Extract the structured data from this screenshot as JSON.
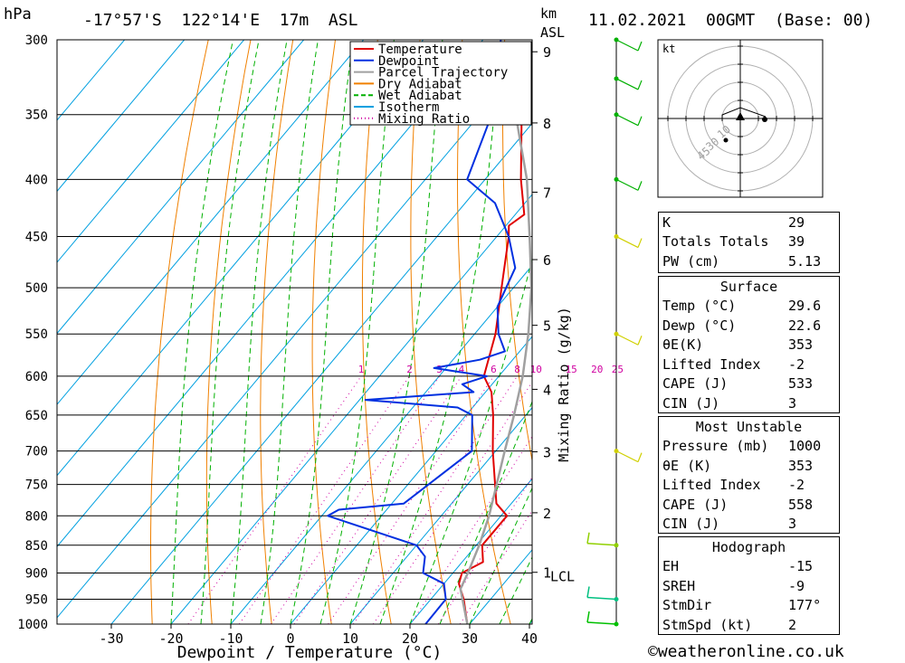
{
  "header": {
    "hpa_label": "hPa",
    "location": "-17°57'S  122°14'E  17m  ASL",
    "km_label": "km",
    "asl_label": "ASL",
    "datetime": "11.02.2021  00GMT  (Base: 00)"
  },
  "chart_data": {
    "type": "line",
    "subtype": "skew-T log-p diagram",
    "xlabel": "Dewpoint / Temperature (°C)",
    "ylabel_right": "Mixing Ratio (g/kg)",
    "x_ticks": [
      -30,
      -20,
      -10,
      0,
      10,
      20,
      30,
      40
    ],
    "pressure_levels": [
      300,
      350,
      400,
      450,
      500,
      550,
      600,
      650,
      700,
      750,
      800,
      850,
      900,
      950,
      1000
    ],
    "km_ticks": [
      1,
      2,
      3,
      4,
      5,
      6,
      7,
      8,
      9
    ],
    "lcl_label": "LCL",
    "mixing_ratio_labels": [
      "1",
      "2",
      "3",
      "4",
      "6",
      "8",
      "10",
      "15",
      "20",
      "25"
    ],
    "legend": [
      {
        "name": "Temperature",
        "color": "#e00000",
        "style": "solid"
      },
      {
        "name": "Dewpoint",
        "color": "#0030e0",
        "style": "solid"
      },
      {
        "name": "Parcel Trajectory",
        "color": "#a0a0a0",
        "style": "solid"
      },
      {
        "name": "Dry Adiabat",
        "color": "#f08000",
        "style": "solid"
      },
      {
        "name": "Wet Adiabat",
        "color": "#00b000",
        "style": "dashed"
      },
      {
        "name": "Isotherm",
        "color": "#00a0e0",
        "style": "solid"
      },
      {
        "name": "Mixing Ratio",
        "color": "#d000a0",
        "style": "dotted"
      }
    ],
    "series": [
      {
        "name": "Temperature",
        "points": [
          [
            1000,
            29.6
          ],
          [
            950,
            25.5
          ],
          [
            920,
            22.5
          ],
          [
            900,
            21.5
          ],
          [
            880,
            23.5
          ],
          [
            850,
            21.0
          ],
          [
            800,
            21.0
          ],
          [
            780,
            17.5
          ],
          [
            700,
            9.5
          ],
          [
            650,
            4.5
          ],
          [
            620,
            1.0
          ],
          [
            600,
            -2.5
          ],
          [
            550,
            -6.5
          ],
          [
            500,
            -12.0
          ],
          [
            450,
            -18.0
          ],
          [
            440,
            -19.5
          ],
          [
            430,
            -18.5
          ],
          [
            400,
            -24.0
          ],
          [
            350,
            -33.0
          ]
        ]
      },
      {
        "name": "Dewpoint",
        "points": [
          [
            1000,
            22.6
          ],
          [
            950,
            22.5
          ],
          [
            920,
            20.0
          ],
          [
            900,
            15.0
          ],
          [
            870,
            13.0
          ],
          [
            850,
            10.0
          ],
          [
            800,
            -9.0
          ],
          [
            790,
            -8.0
          ],
          [
            780,
            2.0
          ],
          [
            700,
            6.0
          ],
          [
            650,
            1.0
          ],
          [
            640,
            -2.5
          ],
          [
            630,
            -19.0
          ],
          [
            620,
            -2.0
          ],
          [
            610,
            -5.0
          ],
          [
            600,
            -2.0
          ],
          [
            590,
            -12.0
          ],
          [
            580,
            -5.5
          ],
          [
            570,
            -2.5
          ],
          [
            550,
            -6.0
          ],
          [
            520,
            -10.0
          ],
          [
            480,
            -12.5
          ],
          [
            450,
            -18.0
          ],
          [
            420,
            -25.0
          ],
          [
            400,
            -33.0
          ],
          [
            350,
            -38.0
          ],
          [
            300,
            -47.0
          ]
        ]
      },
      {
        "name": "Parcel Trajectory",
        "points": [
          [
            1000,
            29.6
          ],
          [
            930,
            23.5
          ],
          [
            900,
            22.5
          ],
          [
            850,
            20.5
          ],
          [
            800,
            18.0
          ],
          [
            700,
            11.5
          ],
          [
            650,
            8.0
          ],
          [
            600,
            4.0
          ],
          [
            550,
            -1.0
          ],
          [
            500,
            -7.0
          ],
          [
            450,
            -14.5
          ],
          [
            400,
            -23.0
          ],
          [
            350,
            -34.0
          ]
        ]
      }
    ]
  },
  "wind_profile": {
    "note": "wind barbs along right edge",
    "colors": {
      "upper": "#00b000",
      "mid": "#d0d000",
      "low": "#00c080"
    }
  },
  "hodograph": {
    "unit_label": "kt",
    "ring_labels": [
      "10",
      "30",
      "45"
    ]
  },
  "indices_top": [
    {
      "label": "K",
      "value": "29"
    },
    {
      "label": "Totals Totals",
      "value": "39"
    },
    {
      "label": "PW (cm)",
      "value": "5.13"
    }
  ],
  "surface": {
    "title": "Surface",
    "rows": [
      {
        "label": "Temp (°C)",
        "value": "29.6"
      },
      {
        "label": "Dewp (°C)",
        "value": "22.6"
      },
      {
        "label": "θE(K)",
        "value": "353"
      },
      {
        "label": "Lifted Index",
        "value": "-2"
      },
      {
        "label": "CAPE (J)",
        "value": "533"
      },
      {
        "label": "CIN (J)",
        "value": "3"
      }
    ]
  },
  "most_unstable": {
    "title": "Most Unstable",
    "rows": [
      {
        "label": "Pressure (mb)",
        "value": "1000"
      },
      {
        "label": "θE (K)",
        "value": "353"
      },
      {
        "label": "Lifted Index",
        "value": "-2"
      },
      {
        "label": "CAPE (J)",
        "value": "558"
      },
      {
        "label": "CIN (J)",
        "value": "3"
      }
    ]
  },
  "hodograph_table": {
    "title": "Hodograph",
    "rows": [
      {
        "label": "EH",
        "value": "-15"
      },
      {
        "label": "SREH",
        "value": "-9"
      },
      {
        "label": "StmDir",
        "value": "177°"
      },
      {
        "label": "StmSpd (kt)",
        "value": "2"
      }
    ]
  },
  "footer": {
    "copyright": "©weatheronline.co.uk"
  }
}
